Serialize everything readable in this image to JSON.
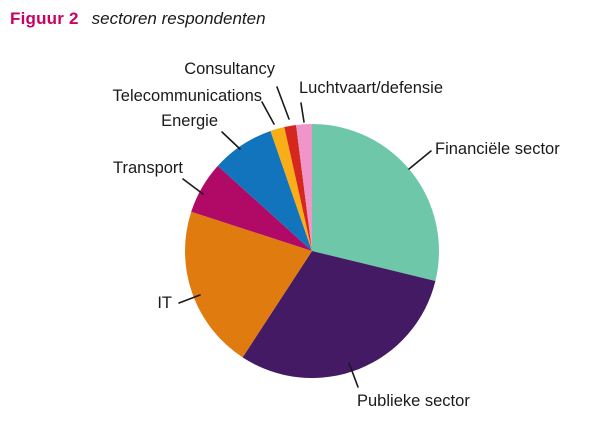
{
  "header": {
    "figure_label": "Figuur 2",
    "figure_title": "sectoren respondenten"
  },
  "chart_data": {
    "type": "pie",
    "title": "Figuur 2 sectoren respondenten",
    "legend": "none",
    "label_style": "outside-with-leader-lines",
    "start_angle_deg": 0,
    "direction": "clockwise",
    "value_unit": "percent (estimated from slice angles)",
    "segments": [
      {
        "label": "Financiële sector",
        "value": 28.8,
        "color": "#6FC7A9"
      },
      {
        "label": "Publieke sector",
        "value": 30.4,
        "color": "#431A63"
      },
      {
        "label": "IT",
        "value": 20.8,
        "color": "#E07B10"
      },
      {
        "label": "Transport",
        "value": 6.7,
        "color": "#B00A66"
      },
      {
        "label": "Energie",
        "value": 8.0,
        "color": "#1274BC"
      },
      {
        "label": "Telecommunications",
        "value": 1.8,
        "color": "#F9AE17"
      },
      {
        "label": "Consultancy",
        "value": 1.5,
        "color": "#D4281E"
      },
      {
        "label": "Luchtvaart/defensie",
        "value": 2.0,
        "color": "#F095C8"
      }
    ]
  }
}
